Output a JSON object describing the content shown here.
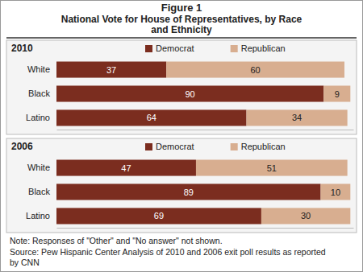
{
  "title": "Figure 1",
  "subtitle": "National Vote for House of Representatives, by Race and Ethnicity",
  "note": "Note: Responses of \"Other\" and \"No answer\" not shown.",
  "source": "Source: Pew Hispanic Center Analysis of 2010 and 2006 exit poll results as reported by CNN",
  "chart_data": [
    {
      "type": "bar",
      "title": "2010",
      "orientation": "horizontal",
      "stacked": true,
      "data_labels": true,
      "tick_labels": "y",
      "legend": "top",
      "categories": [
        "White",
        "Black",
        "Latino"
      ],
      "series": [
        {
          "name": "Democrat",
          "color": "#7b2d1f",
          "values": [
            37,
            90,
            64
          ]
        },
        {
          "name": "Republican",
          "color": "#d8ae90",
          "values": [
            60,
            9,
            34
          ]
        }
      ],
      "xlim": [
        0,
        100
      ],
      "xticks": []
    },
    {
      "type": "bar",
      "title": "2006",
      "orientation": "horizontal",
      "stacked": true,
      "data_labels": true,
      "tick_labels": "y",
      "legend": "top",
      "categories": [
        "White",
        "Black",
        "Latino"
      ],
      "series": [
        {
          "name": "Democrat",
          "color": "#7b2d1f",
          "values": [
            47,
            89,
            69
          ]
        },
        {
          "name": "Republican",
          "color": "#d8ae90",
          "values": [
            51,
            10,
            30
          ]
        }
      ],
      "xlim": [
        0,
        100
      ],
      "xticks": []
    }
  ]
}
